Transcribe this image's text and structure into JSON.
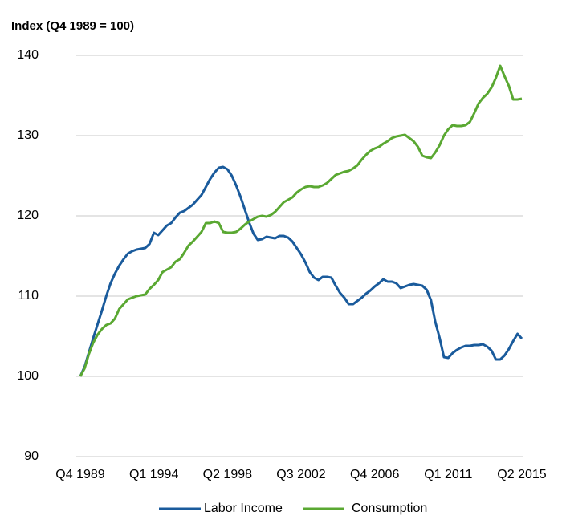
{
  "chart_data": {
    "type": "line",
    "ylabel": "Index (Q4 1989 = 100)",
    "categories": [
      "Q4 1989",
      null,
      null,
      null,
      null,
      null,
      null,
      null,
      null,
      null,
      null,
      null,
      null,
      null,
      null,
      null,
      null,
      "Q1 1994",
      null,
      null,
      null,
      null,
      null,
      null,
      null,
      null,
      null,
      null,
      null,
      null,
      null,
      null,
      null,
      null,
      "Q2 1998",
      null,
      null,
      null,
      null,
      null,
      null,
      null,
      null,
      null,
      null,
      null,
      null,
      null,
      null,
      null,
      null,
      "Q3 2002",
      null,
      null,
      null,
      null,
      null,
      null,
      null,
      null,
      null,
      null,
      null,
      null,
      null,
      null,
      null,
      null,
      "Q4 2006",
      null,
      null,
      null,
      null,
      null,
      null,
      null,
      null,
      null,
      null,
      null,
      null,
      null,
      null,
      null,
      null,
      "Q1 2011",
      null,
      null,
      null,
      null,
      null,
      null,
      null,
      null,
      null,
      null,
      null,
      null,
      null,
      null,
      null,
      null,
      "Q2 2015"
    ],
    "series": [
      {
        "name": "Labor Income",
        "color": "#1a5b9c",
        "values": [
          100.0,
          101.2,
          103.0,
          104.8,
          106.5,
          108.2,
          110.0,
          111.6,
          112.8,
          113.8,
          114.6,
          115.3,
          115.6,
          115.8,
          115.9,
          116.0,
          116.5,
          117.9,
          117.6,
          118.2,
          118.8,
          119.1,
          119.8,
          120.4,
          120.6,
          121.0,
          121.4,
          122.0,
          122.6,
          123.6,
          124.6,
          125.4,
          126.0,
          126.1,
          125.8,
          125.0,
          123.8,
          122.4,
          120.8,
          119.2,
          117.8,
          117.0,
          117.1,
          117.4,
          117.3,
          117.2,
          117.5,
          117.5,
          117.3,
          116.8,
          116.0,
          115.2,
          114.2,
          113.0,
          112.3,
          112.0,
          112.4,
          112.4,
          112.3,
          111.3,
          110.4,
          109.8,
          109.0,
          109.0,
          109.4,
          109.8,
          110.3,
          110.7,
          111.2,
          111.6,
          112.1,
          111.8,
          111.8,
          111.6,
          111.0,
          111.2,
          111.4,
          111.5,
          111.4,
          111.3,
          110.8,
          109.5,
          106.8,
          104.8,
          102.4,
          102.3,
          102.9,
          103.3,
          103.6,
          103.8,
          103.8,
          103.9,
          103.9,
          104.0,
          103.7,
          103.2,
          102.1,
          102.1,
          102.6,
          103.4,
          104.4,
          105.3,
          104.7
        ]
      },
      {
        "name": "Consumption",
        "color": "#5aa832",
        "values": [
          100.0,
          101.0,
          102.8,
          104.2,
          105.2,
          105.9,
          106.4,
          106.6,
          107.2,
          108.4,
          109.0,
          109.6,
          109.8,
          110.0,
          110.1,
          110.2,
          110.9,
          111.4,
          112.0,
          113.0,
          113.3,
          113.6,
          114.3,
          114.6,
          115.4,
          116.3,
          116.8,
          117.4,
          118.0,
          119.1,
          119.1,
          119.3,
          119.1,
          118.0,
          117.9,
          117.9,
          118.0,
          118.4,
          118.9,
          119.3,
          119.6,
          119.9,
          120.0,
          119.9,
          120.1,
          120.5,
          121.1,
          121.7,
          122.0,
          122.3,
          122.9,
          123.3,
          123.6,
          123.7,
          123.6,
          123.6,
          123.8,
          124.1,
          124.6,
          125.1,
          125.3,
          125.5,
          125.6,
          125.9,
          126.3,
          127.0,
          127.6,
          128.1,
          128.4,
          128.6,
          129.0,
          129.3,
          129.7,
          129.9,
          130.0,
          130.1,
          129.7,
          129.3,
          128.6,
          127.5,
          127.3,
          127.2,
          127.9,
          128.8,
          130.0,
          130.8,
          131.3,
          131.2,
          131.2,
          131.3,
          131.7,
          132.8,
          134.0,
          134.7,
          135.2,
          136.0,
          137.2,
          138.7,
          137.4,
          136.2,
          134.5,
          134.5,
          134.6
        ]
      }
    ],
    "ylim": [
      90,
      140
    ],
    "yticks": [
      90,
      100,
      110,
      120,
      130,
      140
    ],
    "grid": true,
    "legend": "bottom"
  }
}
